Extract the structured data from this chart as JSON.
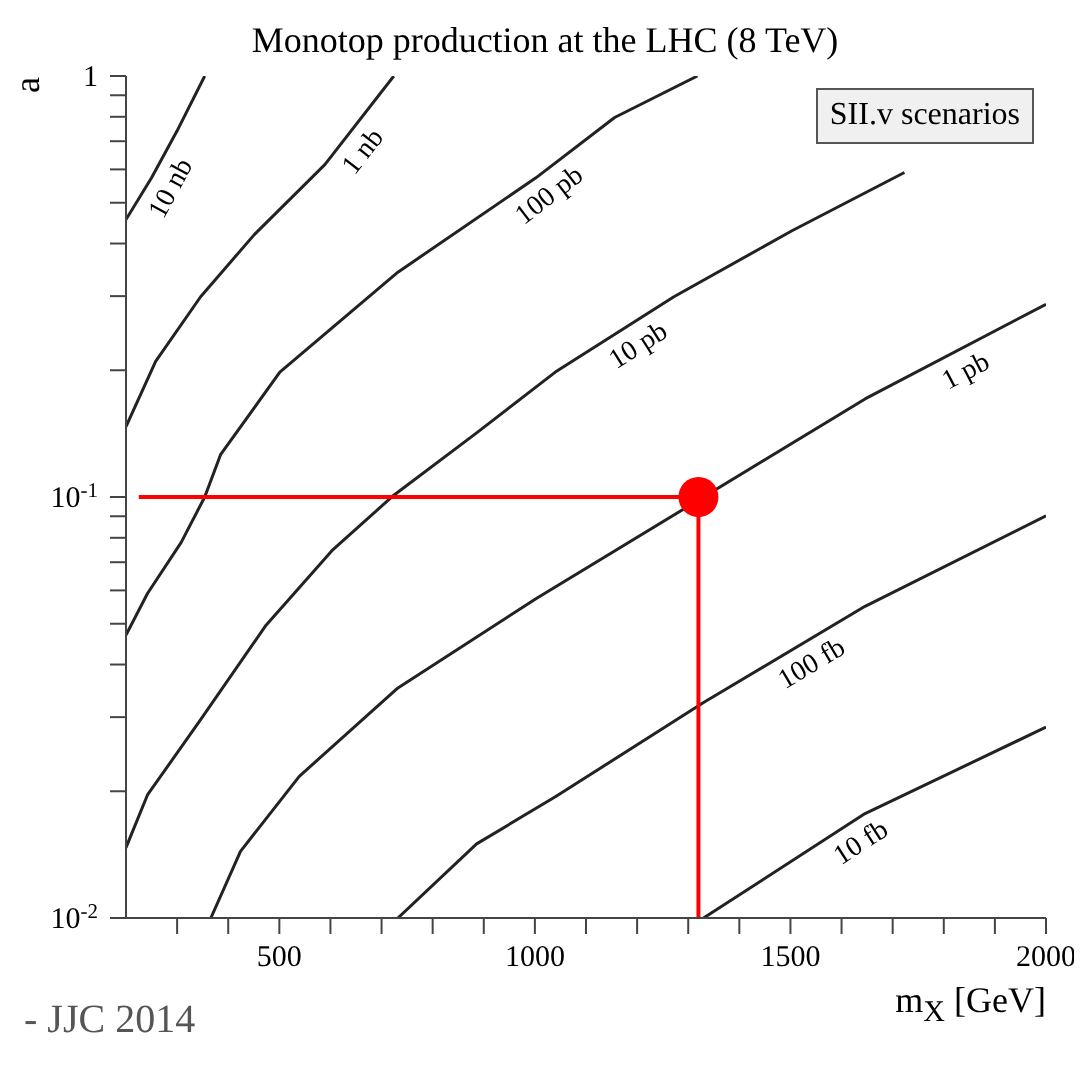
{
  "chart_data": {
    "type": "line",
    "title": "Monotop production at the LHC (8 TeV)",
    "xlabel": "m$_{X}$ [GeV]",
    "ylabel": "a",
    "log": "y",
    "grid": false,
    "marker": "none",
    "line_style": "solid",
    "xlim": [
      200,
      2000
    ],
    "xticks": [
      {
        "value": 300,
        "label": null
      },
      {
        "value": 400,
        "label": null
      },
      500,
      {
        "value": 600,
        "label": null
      },
      {
        "value": 700,
        "label": null
      },
      {
        "value": 800,
        "label": null
      },
      {
        "value": 900,
        "label": null
      },
      1000,
      {
        "value": 1100,
        "label": null
      },
      {
        "value": 1200,
        "label": null
      },
      {
        "value": 1300,
        "label": null
      },
      {
        "value": 1400,
        "label": null
      },
      1500,
      {
        "value": 1600,
        "label": null
      },
      {
        "value": 1700,
        "label": null
      },
      {
        "value": 1800,
        "label": null
      },
      {
        "value": 1900,
        "label": null
      },
      2000
    ],
    "ylim": [
      0.01,
      1
    ],
    "yticks": [
      {
        "value": 0.01,
        "label": "10$^{-2}$"
      },
      {
        "value": 0.02,
        "label": null
      },
      {
        "value": 0.03,
        "label": null
      },
      {
        "value": 0.04,
        "label": null
      },
      {
        "value": 0.05,
        "label": null
      },
      {
        "value": 0.06,
        "label": null
      },
      {
        "value": 0.07,
        "label": null
      },
      {
        "value": 0.08,
        "label": null
      },
      {
        "value": 0.09,
        "label": null
      },
      {
        "value": 0.1,
        "label": "10$^{-1}$"
      },
      {
        "value": 0.2,
        "label": null
      },
      {
        "value": 0.3,
        "label": null
      },
      {
        "value": 0.4,
        "label": null
      },
      {
        "value": 0.5,
        "label": null
      },
      {
        "value": 0.6,
        "label": null
      },
      {
        "value": 0.7,
        "label": null
      },
      {
        "value": 0.8,
        "label": null
      },
      {
        "value": 0.9,
        "label": null
      },
      {
        "value": 1,
        "label": "1"
      }
    ],
    "series": [
      {
        "name": "10 nb",
        "color": "#222222",
        "x": [
          200,
          250,
          300,
          354
        ],
        "values": [
          0.456,
          0.573,
          0.741,
          1
        ]
      },
      {
        "name": "1 nb",
        "color": "#222222",
        "x": [
          200,
          258,
          346,
          451,
          589,
          724
        ],
        "values": [
          0.147,
          0.21,
          0.299,
          0.42,
          0.616,
          1
        ]
      },
      {
        "name": "100 pb",
        "color": "#222222",
        "x": [
          200,
          242,
          308,
          354,
          385,
          501,
          732,
          1002,
          1156,
          1318
        ],
        "values": [
          0.047,
          0.059,
          0.078,
          0.1,
          0.126,
          0.198,
          0.342,
          0.573,
          0.797,
          1
        ]
      },
      {
        "name": "10 pb",
        "color": "#222222",
        "x": [
          200,
          242,
          346,
          474,
          605,
          724,
          886,
          1040,
          1272,
          1503,
          1723
        ],
        "values": [
          0.0147,
          0.0196,
          0.0296,
          0.0496,
          0.075,
          0.101,
          0.142,
          0.198,
          0.299,
          0.429,
          0.59
        ]
      },
      {
        "name": "1 pb",
        "color": "#222222",
        "x": [
          366,
          424,
          539,
          732,
          1002,
          1646,
          2000
        ],
        "values": [
          0.01,
          0.0144,
          0.0217,
          0.0352,
          0.0573,
          0.171,
          0.287
        ]
      },
      {
        "name": "100 fb",
        "color": "#222222",
        "x": [
          732,
          886,
          1040,
          1330,
          1646,
          2000
        ],
        "values": [
          0.01,
          0.015,
          0.0194,
          0.0325,
          0.055,
          0.0902
        ]
      },
      {
        "name": "10 fb",
        "color": "#222222",
        "x": [
          1330,
          1646,
          2000
        ],
        "values": [
          0.01,
          0.0177,
          0.0284
        ]
      },
      {
        "type": "line",
        "color": "#ff0000",
        "x": [
          225,
          1320,
          1320
        ],
        "values": [
          0.1,
          0.1,
          0.01
        ]
      },
      {
        "type": "scatter",
        "marker": "circle",
        "color": "#ff0000",
        "x": [
          1320
        ],
        "values": [
          0.1
        ]
      }
    ],
    "annotations": [
      "SII.v scenarios",
      "- JJC 2014"
    ]
  }
}
